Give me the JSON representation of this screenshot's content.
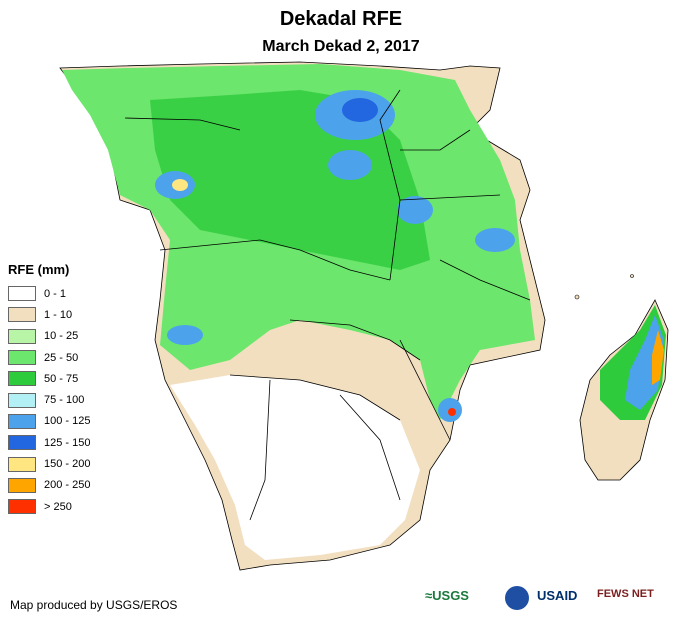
{
  "title": "Dekadal RFE",
  "subtitle": "March Dekad 2, 2017",
  "legend": {
    "title": "RFE (mm)",
    "items": [
      {
        "label": "0 - 1",
        "color": "#ffffff"
      },
      {
        "label": "1 - 10",
        "color": "#f2dfc0"
      },
      {
        "label": "10 - 25",
        "color": "#b9f5a6"
      },
      {
        "label": "25 - 50",
        "color": "#6ce66c"
      },
      {
        "label": "50 - 75",
        "color": "#2ecb3c"
      },
      {
        "label": "75 - 100",
        "color": "#b3f0f5"
      },
      {
        "label": "100 - 125",
        "color": "#4ca3eb"
      },
      {
        "label": "125 - 150",
        "color": "#2266e0"
      },
      {
        "label": "150 - 200",
        "color": "#ffe680"
      },
      {
        "label": "200 - 250",
        "color": "#ffa500"
      },
      {
        "label": "> 250",
        "color": "#ff3000"
      }
    ]
  },
  "credit": "Map produced by USGS/EROS",
  "logos": {
    "usgs": "USGS",
    "usaid": "USAID",
    "fewsnet": "FEWS NET"
  }
}
